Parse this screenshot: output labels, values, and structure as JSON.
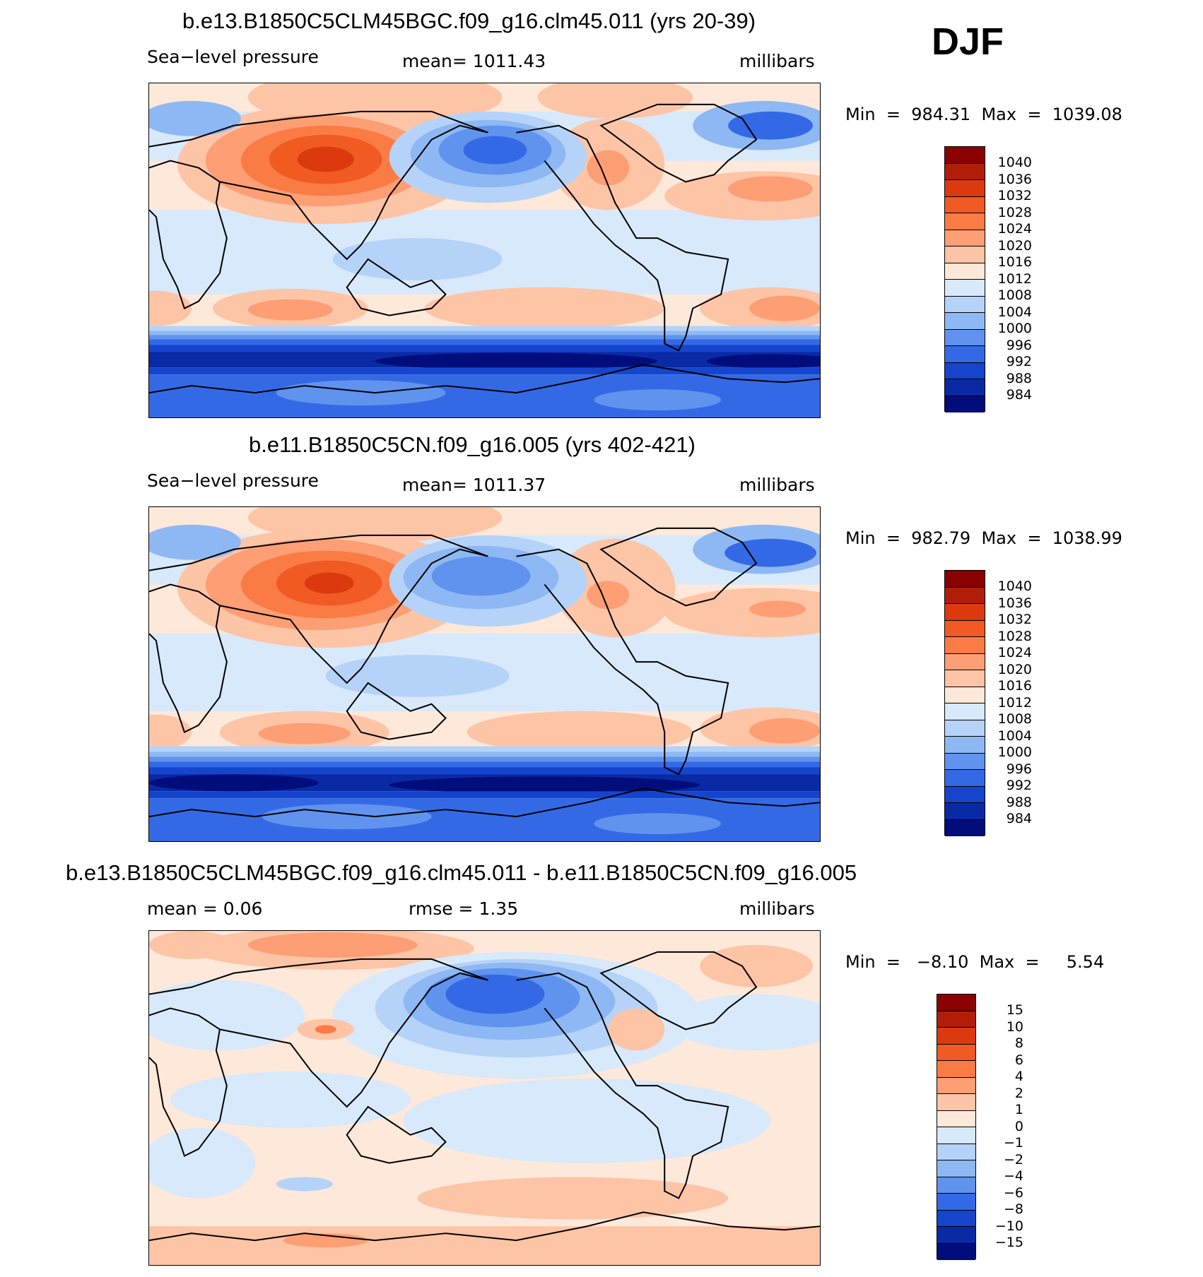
{
  "season": "DJF",
  "panels": [
    {
      "title": "b.e13.B1850C5CLM45BGC.f09_g16.clm45.011 (yrs 20-39)",
      "variable": "Sea−level pressure",
      "stat": "mean=  1011.43",
      "units": "millibars",
      "minmax": "Min  =  984.31  Max  =  1039.08",
      "colorbar": {
        "labels": [
          "1040",
          "1036",
          "1032",
          "1028",
          "1024",
          "1020",
          "1016",
          "1012",
          "1008",
          "1004",
          "1000",
          "996",
          "992",
          "988",
          "984"
        ],
        "colors": [
          "#8b0000",
          "#b01e08",
          "#dc3a0e",
          "#f15a23",
          "#fb7b45",
          "#fd9e74",
          "#fdc4a6",
          "#fde8da",
          "#d7e9fb",
          "#b5d3f8",
          "#8eb8f4",
          "#5f93ee",
          "#3469e6",
          "#1544cd",
          "#0a2aa5",
          "#000d7a"
        ]
      }
    },
    {
      "title": "b.e11.B1850C5CN.f09_g16.005 (yrs 402-421)",
      "variable": "Sea−level pressure",
      "stat": "mean=  1011.37",
      "units": "millibars",
      "minmax": "Min  =  982.79  Max  =  1038.99",
      "colorbar": {
        "labels": [
          "1040",
          "1036",
          "1032",
          "1028",
          "1024",
          "1020",
          "1016",
          "1012",
          "1008",
          "1004",
          "1000",
          "996",
          "992",
          "988",
          "984"
        ],
        "colors": [
          "#8b0000",
          "#b01e08",
          "#dc3a0e",
          "#f15a23",
          "#fb7b45",
          "#fd9e74",
          "#fdc4a6",
          "#fde8da",
          "#d7e9fb",
          "#b5d3f8",
          "#8eb8f4",
          "#5f93ee",
          "#3469e6",
          "#1544cd",
          "#0a2aa5",
          "#000d7a"
        ]
      }
    },
    {
      "title": "b.e13.B1850C5CLM45BGC.f09_g16.clm45.011 - b.e11.B1850C5CN.f09_g16.005",
      "stat_mean": "mean  =     0.06",
      "stat_rmse": "rmse  =     1.35",
      "units": "millibars",
      "minmax": "Min  =   −8.10  Max  =     5.54",
      "colorbar": {
        "labels": [
          "15",
          "10",
          "8",
          "6",
          "4",
          "2",
          "1",
          "0",
          "−1",
          "−2",
          "−4",
          "−6",
          "−8",
          "−10",
          "−15"
        ],
        "colors": [
          "#8b0000",
          "#b01e08",
          "#dc3a0e",
          "#f15a23",
          "#fb7b45",
          "#fd9e74",
          "#fdc4a6",
          "#fde8da",
          "#d7e9fb",
          "#b5d3f8",
          "#8eb8f4",
          "#5f93ee",
          "#3469e6",
          "#1544cd",
          "#0a2aa5",
          "#000d7a"
        ]
      }
    }
  ]
}
